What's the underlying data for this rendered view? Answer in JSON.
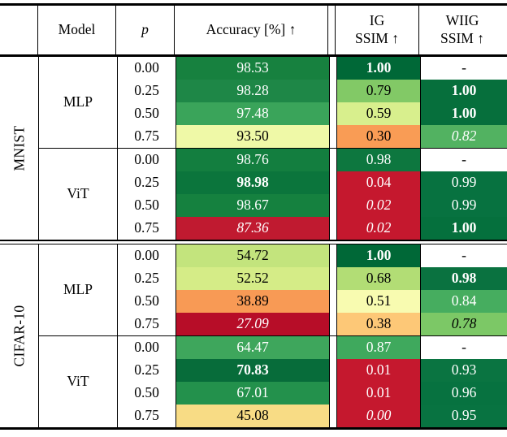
{
  "table": {
    "header": {
      "model": "Model",
      "p": "p",
      "accuracy": "Accuracy [%] ↑",
      "ig": [
        "IG",
        "SSIM ↑"
      ],
      "wiig": [
        "WIIG",
        "SSIM ↑"
      ]
    },
    "colors": {
      "rule": "#000000",
      "best_green": "#006837",
      "worst_red": "#c5182e"
    },
    "sections": [
      {
        "dataset": "MNIST",
        "groups": [
          {
            "model": "MLP",
            "rows": [
              {
                "p": "0.00",
                "acc": {
                  "v": "98.53",
                  "bg": "#17813f",
                  "fg": "#ffffff"
                },
                "ig": {
                  "v": "1.00",
                  "bg": "#006837",
                  "fg": "#ffffff",
                  "bold": true
                },
                "wiig": {
                  "v": "-",
                  "bg": "#ffffff",
                  "fg": "#000000"
                }
              },
              {
                "p": "0.25",
                "acc": {
                  "v": "98.28",
                  "bg": "#1e8747",
                  "fg": "#ffffff"
                },
                "ig": {
                  "v": "0.79",
                  "bg": "#82c966",
                  "fg": "#000000"
                },
                "wiig": {
                  "v": "1.00",
                  "bg": "#066f3c",
                  "fg": "#ffffff",
                  "bold": true
                }
              },
              {
                "p": "0.50",
                "acc": {
                  "v": "97.48",
                  "bg": "#3aa45a",
                  "fg": "#ffffff"
                },
                "ig": {
                  "v": "0.59",
                  "bg": "#d8ef8d",
                  "fg": "#000000"
                },
                "wiig": {
                  "v": "1.00",
                  "bg": "#066f3c",
                  "fg": "#ffffff",
                  "bold": true
                }
              },
              {
                "p": "0.75",
                "acc": {
                  "v": "93.50",
                  "bg": "#eff9a7",
                  "fg": "#000000"
                },
                "ig": {
                  "v": "0.30",
                  "bg": "#f99c55",
                  "fg": "#000000"
                },
                "wiig": {
                  "v": "0.82",
                  "bg": "#52b261",
                  "fg": "#ffffff",
                  "italic": true
                }
              }
            ]
          },
          {
            "model": "ViT",
            "rows": [
              {
                "p": "0.00",
                "acc": {
                  "v": "98.76",
                  "bg": "#137e3f",
                  "fg": "#ffffff"
                },
                "ig": {
                  "v": "0.98",
                  "bg": "#0d773f",
                  "fg": "#ffffff"
                },
                "wiig": {
                  "v": "-",
                  "bg": "#ffffff",
                  "fg": "#000000"
                }
              },
              {
                "p": "0.25",
                "acc": {
                  "v": "98.98",
                  "bg": "#0b753c",
                  "fg": "#ffffff",
                  "bold": true
                },
                "ig": {
                  "v": "0.04",
                  "bg": "#c5182e",
                  "fg": "#ffffff"
                },
                "wiig": {
                  "v": "0.99",
                  "bg": "#077240",
                  "fg": "#ffffff"
                }
              },
              {
                "p": "0.50",
                "acc": {
                  "v": "98.67",
                  "bg": "#15813f",
                  "fg": "#ffffff"
                },
                "ig": {
                  "v": "0.02",
                  "bg": "#c5182e",
                  "fg": "#ffffff",
                  "italic": true
                },
                "wiig": {
                  "v": "0.99",
                  "bg": "#077240",
                  "fg": "#ffffff"
                }
              },
              {
                "p": "0.75",
                "acc": {
                  "v": "87.36",
                  "bg": "#c01a30",
                  "fg": "#ffffff",
                  "italic": true
                },
                "ig": {
                  "v": "0.02",
                  "bg": "#c5182e",
                  "fg": "#ffffff",
                  "italic": true
                },
                "wiig": {
                  "v": "1.00",
                  "bg": "#05703d",
                  "fg": "#ffffff",
                  "bold": true
                }
              }
            ]
          }
        ]
      },
      {
        "dataset": "CIFAR-10",
        "groups": [
          {
            "model": "MLP",
            "rows": [
              {
                "p": "0.00",
                "acc": {
                  "v": "54.72",
                  "bg": "#c3e47d",
                  "fg": "#000000"
                },
                "ig": {
                  "v": "1.00",
                  "bg": "#006837",
                  "fg": "#ffffff",
                  "bold": true
                },
                "wiig": {
                  "v": "-",
                  "bg": "#ffffff",
                  "fg": "#000000"
                }
              },
              {
                "p": "0.25",
                "acc": {
                  "v": "52.52",
                  "bg": "#d5ec87",
                  "fg": "#000000"
                },
                "ig": {
                  "v": "0.68",
                  "bg": "#b2dd75",
                  "fg": "#000000"
                },
                "wiig": {
                  "v": "0.98",
                  "bg": "#0a7240",
                  "fg": "#ffffff",
                  "bold": true
                }
              },
              {
                "p": "0.50",
                "acc": {
                  "v": "38.89",
                  "bg": "#f89a55",
                  "fg": "#000000"
                },
                "ig": {
                  "v": "0.51",
                  "bg": "#f8fbb0",
                  "fg": "#000000"
                },
                "wiig": {
                  "v": "0.84",
                  "bg": "#46ad5f",
                  "fg": "#ffffff"
                }
              },
              {
                "p": "0.75",
                "acc": {
                  "v": "27.09",
                  "bg": "#b70d28",
                  "fg": "#ffffff",
                  "italic": true
                },
                "ig": {
                  "v": "0.38",
                  "bg": "#fdc877",
                  "fg": "#000000"
                },
                "wiig": {
                  "v": "0.78",
                  "bg": "#7cc866",
                  "fg": "#000000",
                  "italic": true
                }
              }
            ]
          },
          {
            "model": "ViT",
            "rows": [
              {
                "p": "0.00",
                "acc": {
                  "v": "64.47",
                  "bg": "#3ea65c",
                  "fg": "#ffffff"
                },
                "ig": {
                  "v": "0.87",
                  "bg": "#3fa95d",
                  "fg": "#ffffff"
                },
                "wiig": {
                  "v": "-",
                  "bg": "#ffffff",
                  "fg": "#000000"
                }
              },
              {
                "p": "0.25",
                "acc": {
                  "v": "70.83",
                  "bg": "#076c3a",
                  "fg": "#ffffff",
                  "bold": true
                },
                "ig": {
                  "v": "0.01",
                  "bg": "#c5182e",
                  "fg": "#ffffff"
                },
                "wiig": {
                  "v": "0.93",
                  "bg": "#0a7441",
                  "fg": "#ffffff"
                }
              },
              {
                "p": "0.50",
                "acc": {
                  "v": "67.01",
                  "bg": "#23914c",
                  "fg": "#ffffff"
                },
                "ig": {
                  "v": "0.01",
                  "bg": "#c5182e",
                  "fg": "#ffffff"
                },
                "wiig": {
                  "v": "0.96",
                  "bg": "#077240",
                  "fg": "#ffffff"
                }
              },
              {
                "p": "0.75",
                "acc": {
                  "v": "45.08",
                  "bg": "#f8dc85",
                  "fg": "#000000"
                },
                "ig": {
                  "v": "0.00",
                  "bg": "#c5182e",
                  "fg": "#ffffff",
                  "italic": true
                },
                "wiig": {
                  "v": "0.95",
                  "bg": "#087341",
                  "fg": "#ffffff"
                }
              }
            ]
          }
        ]
      }
    ]
  }
}
